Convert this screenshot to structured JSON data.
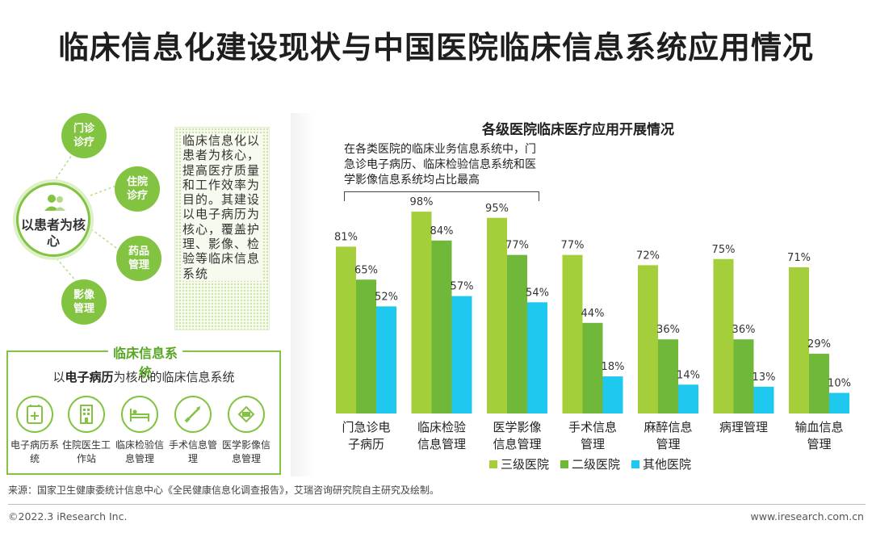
{
  "title": "临床信息化建设现状与中国医院临床信息系统应用情况",
  "diagram": {
    "hub": "以患者为核心",
    "spokes": [
      "门诊诊疗",
      "住院诊疗",
      "药品管理",
      "影像管理"
    ],
    "note": "临床信息化以患者为核心，提高医疗质量和工作效率为目的。其建设以电子病历为核心，覆盖护理、影像、检验等临床信息系统"
  },
  "system_box": {
    "title": "临床信息系统",
    "subtitle_pre": "以",
    "subtitle_bold": "电子病历",
    "subtitle_post": "为核心的临床信息系统",
    "items": [
      {
        "label": "电子病历系统",
        "icon": "medical-record-icon"
      },
      {
        "label": "住院医生工作站",
        "icon": "hospital-building-icon"
      },
      {
        "label": "临床检验信息管理",
        "icon": "hospital-bed-icon"
      },
      {
        "label": "手术信息管理",
        "icon": "scalpel-icon"
      },
      {
        "label": "医学影像信息管理",
        "icon": "imaging-scanner-icon"
      }
    ]
  },
  "chart_data": {
    "type": "bar",
    "title": "各级医院临床医疗应用开展情况",
    "annotation": "在各类医院的临床业务信息系统中，门急诊电子病历、临床检验信息系统和医学影像信息系统均占比最高",
    "categories": [
      [
        "门急诊电",
        "子病历"
      ],
      [
        "临床检验",
        "信息管理"
      ],
      [
        "医学影像",
        "信息管理"
      ],
      [
        "手术信息",
        "管理"
      ],
      [
        "麻醉信息",
        "管理"
      ],
      [
        "病理管理"
      ],
      [
        "输血信息",
        "管理"
      ]
    ],
    "series": [
      {
        "name": "三级医院",
        "color": "#a5cf3a",
        "values": [
          81,
          98,
          95,
          77,
          72,
          75,
          71
        ]
      },
      {
        "name": "二级医院",
        "color": "#6fb83a",
        "values": [
          65,
          84,
          77,
          44,
          36,
          36,
          29
        ]
      },
      {
        "name": "其他医院",
        "color": "#1ec8ef",
        "values": [
          52,
          57,
          54,
          18,
          14,
          13,
          10
        ]
      }
    ],
    "value_suffix": "%",
    "ylim": [
      0,
      100
    ],
    "legend_position": "bottom-center",
    "grid": false
  },
  "source": "来源：国家卫生健康委统计信息中心《全民健康信息化调查报告》，艾瑞咨询研究院自主研究及绘制。",
  "footer": {
    "copyright": "©2022.3 iResearch Inc.",
    "url": "www.iresearch.com.cn"
  }
}
